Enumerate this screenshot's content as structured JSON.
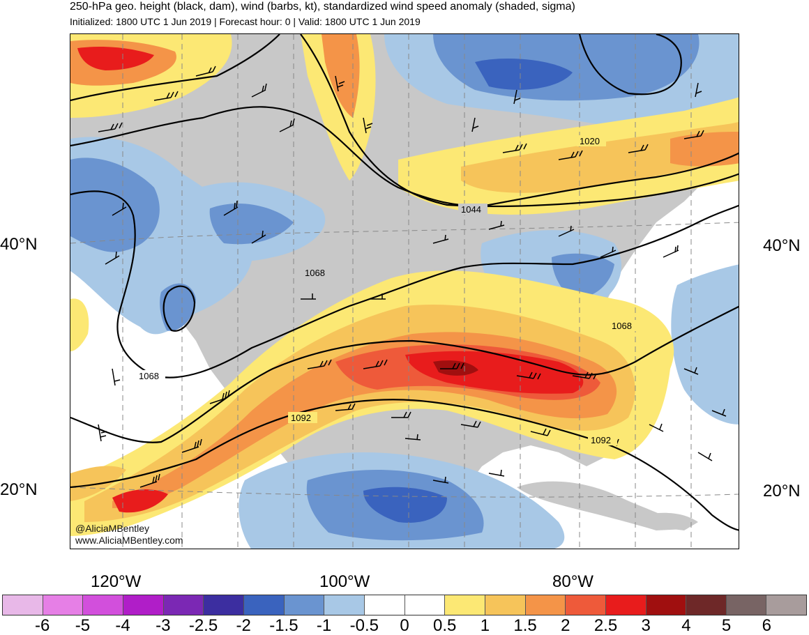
{
  "header": {
    "title": "250-hPa geo. height (black, dam), wind (barbs, kt), standardized wind speed anomaly (shaded, sigma)",
    "subtitle": "Initialized: 1800 UTC 1 Jun 2019 | Forecast hour: 0 | Valid: 1800 UTC 1 Jun 2019"
  },
  "map": {
    "latitude_labels_left": [
      "40°N",
      "20°N"
    ],
    "latitude_labels_right": [
      "40°N",
      "20°N"
    ],
    "longitude_labels": [
      "120°W",
      "100°W",
      "80°W"
    ],
    "contour_labels": [
      "1020",
      "1044",
      "1068",
      "1068",
      "1068",
      "1092",
      "1092"
    ],
    "credit_lines": [
      "@AliciaMBentley",
      "www.AliciaMBentley.com"
    ],
    "land_color": "#c8c8c8",
    "contour_color": "#000000",
    "barb_color": "#000000"
  },
  "colorbar": {
    "colors": [
      "#e8b8e8",
      "#e67fe6",
      "#d24fdc",
      "#b01ec8",
      "#7b28b4",
      "#3c2ea0",
      "#3a63be",
      "#6a94d0",
      "#a8c8e6",
      "#ffffff",
      "#ffffff",
      "#fce874",
      "#f6c45a",
      "#f49448",
      "#ee5a3a",
      "#e81c1c",
      "#a00f0f",
      "#6e2828",
      "#786464",
      "#a89c9c"
    ],
    "tick_labels": [
      "-6",
      "-5",
      "-4",
      "-3",
      "-2.5",
      "-2",
      "-1.5",
      "-1",
      "-0.5",
      "0",
      "0.5",
      "1",
      "1.5",
      "2",
      "2.5",
      "3",
      "4",
      "5",
      "6"
    ]
  }
}
